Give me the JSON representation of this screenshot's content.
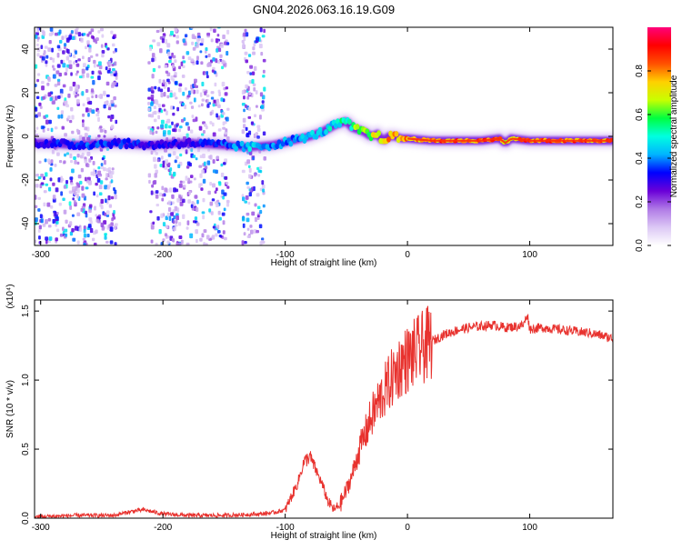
{
  "title": "GN04.2026.063.16.19.G09",
  "chart_data": [
    {
      "type": "heatmap",
      "xlabel": "Height of straight line (km)",
      "ylabel": "Frequency (Hz)",
      "xlim": [
        -305,
        168
      ],
      "ylim": [
        -50,
        50
      ],
      "xticks": [
        -300,
        -200,
        -100,
        0,
        100
      ],
      "yticks": [
        -40,
        -20,
        0,
        20,
        40
      ],
      "colorbar": {
        "label": "Normalized spectral amplitude",
        "range": [
          0.0,
          1.0
        ],
        "ticks": [
          "0.0",
          "0.2",
          "0.4",
          "0.6",
          "0.8"
        ],
        "colors": [
          "#ffffff",
          "#dcc8f5",
          "#b07ae6",
          "#6a00d8",
          "#0000ff",
          "#00b4ff",
          "#00ffe0",
          "#00ff40",
          "#c8ff00",
          "#ffd000",
          "#ff5000",
          "#ff0000",
          "#ff007a"
        ]
      },
      "ridge": {
        "x": [
          -300,
          -270,
          -240,
          -210,
          -180,
          -150,
          -130,
          -110,
          -95,
          -80,
          -70,
          -60,
          -50,
          -45,
          -40,
          -35,
          -30,
          -25,
          -20,
          -15,
          -10,
          -5,
          0,
          20,
          40,
          60,
          75,
          80,
          85,
          100,
          120,
          140,
          168
        ],
        "freq": [
          -3,
          -4,
          -3,
          -4,
          -3,
          -4,
          -5,
          -4,
          -2,
          0,
          2,
          5,
          7,
          4,
          3,
          2,
          0,
          1,
          -2,
          0,
          0,
          -1,
          -1,
          -2,
          -2,
          -2,
          -1,
          -3,
          -1,
          -2,
          -2,
          -2,
          -2
        ],
        "amplitude": [
          0.35,
          0.4,
          0.4,
          0.35,
          0.35,
          0.4,
          0.5,
          0.45,
          0.45,
          0.5,
          0.5,
          0.55,
          0.6,
          0.65,
          0.7,
          0.75,
          0.75,
          0.8,
          0.85,
          0.85,
          0.85,
          0.9,
          0.9,
          0.92,
          0.93,
          0.93,
          0.92,
          0.75,
          0.9,
          0.93,
          0.93,
          0.93,
          0.92
        ]
      },
      "noise_regions": [
        [
          -305,
          -238
        ],
        [
          -212,
          -147
        ],
        [
          -135,
          -117
        ]
      ]
    },
    {
      "type": "line",
      "xlabel": "Height of straight line (km)",
      "ylabel": "SNR (10 * v/v)",
      "y_multiplier": "(x10⁴)",
      "xlim": [
        -305,
        168
      ],
      "ylim": [
        0,
        1.58
      ],
      "xticks": [
        -300,
        -200,
        -100,
        0,
        100
      ],
      "yticks": [
        "0.0",
        "0.5",
        "1.0",
        "1.5"
      ],
      "line_color": "#e8322e",
      "series": [
        {
          "x": [
            -305,
            -270,
            -240,
            -225,
            -215,
            -200,
            -180,
            -150,
            -120,
            -110,
            -100,
            -90,
            -85,
            -80,
            -75,
            -70,
            -65,
            -60,
            -55,
            -50,
            -45,
            -40,
            -35,
            -30,
            -25,
            -20,
            -15,
            -10,
            -5,
            0,
            10,
            20,
            30,
            40,
            50,
            60,
            70,
            80,
            90,
            95,
            98,
            100,
            110,
            120,
            130,
            140,
            150,
            160,
            168
          ],
          "y": [
            0.01,
            0.02,
            0.02,
            0.05,
            0.06,
            0.03,
            0.02,
            0.02,
            0.03,
            0.04,
            0.06,
            0.25,
            0.4,
            0.45,
            0.35,
            0.25,
            0.12,
            0.06,
            0.1,
            0.2,
            0.32,
            0.48,
            0.6,
            0.72,
            0.82,
            0.9,
            0.98,
            1.05,
            1.12,
            1.15,
            1.22,
            1.28,
            1.33,
            1.36,
            1.38,
            1.39,
            1.4,
            1.38,
            1.39,
            1.4,
            1.48,
            1.37,
            1.38,
            1.37,
            1.36,
            1.35,
            1.34,
            1.32,
            1.3
          ]
        }
      ]
    }
  ]
}
